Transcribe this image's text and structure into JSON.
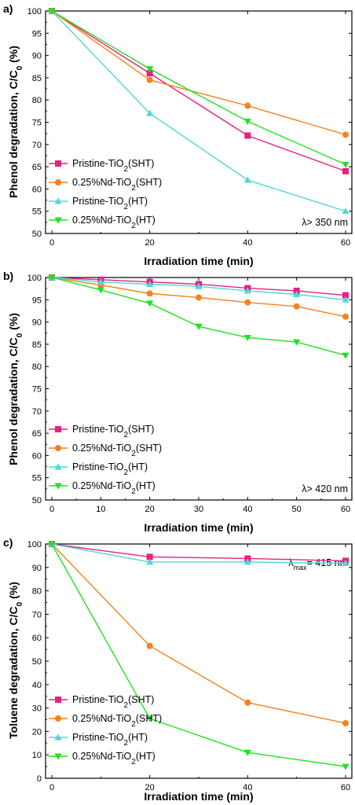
{
  "chart_data": [
    {
      "type": "line",
      "panel_label": "a)",
      "xlabel": "Irradiation time (min)",
      "ylabel": "Phenol degradation, C/C0 (%)",
      "xlim": [
        0,
        60
      ],
      "ylim": [
        50,
        100
      ],
      "xticks": [
        0,
        20,
        40,
        60
      ],
      "yticks": [
        50,
        55,
        60,
        65,
        70,
        75,
        80,
        85,
        90,
        95,
        100
      ],
      "annotation": "λ> 350 nm",
      "legend_position": "bottom-left",
      "grid": false,
      "series": [
        {
          "name": "Pristine-TiO2(SHT)",
          "name_parts": [
            "Pristine-TiO",
            "2",
            "(SHT)"
          ],
          "color": "#e8207f",
          "marker": "square",
          "x": [
            0,
            20,
            40,
            60
          ],
          "values": [
            100,
            86,
            72,
            64
          ]
        },
        {
          "name": "0.25%Nd-TiO2(SHT)",
          "name_parts": [
            "0.25%Nd-TiO",
            "2",
            "(SHT)"
          ],
          "color": "#f4821f",
          "marker": "circle",
          "x": [
            0,
            20,
            40,
            60
          ],
          "values": [
            100,
            84.5,
            78.7,
            72.2
          ]
        },
        {
          "name": "Pristine-TiO2(HT)",
          "name_parts": [
            "Pristine-TiO",
            "2",
            "(HT)"
          ],
          "color": "#4fd8d8",
          "marker": "triangle-up",
          "x": [
            0,
            20,
            40,
            60
          ],
          "values": [
            100,
            77,
            62,
            55
          ]
        },
        {
          "name": "0.25%Nd-TiO2(HT)",
          "name_parts": [
            "0.25%Nd-TiO",
            "2",
            "(HT)"
          ],
          "color": "#22e022",
          "marker": "triangle-down",
          "x": [
            0,
            20,
            40,
            60
          ],
          "values": [
            100,
            87,
            75.2,
            65.5
          ]
        }
      ]
    },
    {
      "type": "line",
      "panel_label": "b)",
      "xlabel": "Irradiation time (min)",
      "ylabel": "Phenol degradation, C/C0 (%)",
      "xlim": [
        0,
        60
      ],
      "ylim": [
        50,
        100
      ],
      "xticks": [
        0,
        10,
        20,
        30,
        40,
        50,
        60
      ],
      "yticks": [
        50,
        55,
        60,
        65,
        70,
        75,
        80,
        85,
        90,
        95,
        100
      ],
      "annotation": "λ> 420 nm",
      "legend_position": "bottom-left",
      "grid": false,
      "series": [
        {
          "name": "Pristine-TiO2(SHT)",
          "name_parts": [
            "Pristine-TiO",
            "2",
            "(SHT)"
          ],
          "color": "#e8207f",
          "marker": "square",
          "x": [
            0,
            10,
            20,
            30,
            40,
            50,
            60
          ],
          "values": [
            100,
            99.5,
            99,
            98.5,
            97.6,
            97,
            96
          ]
        },
        {
          "name": "0.25%Nd-TiO2(SHT)",
          "name_parts": [
            "0.25%Nd-TiO",
            "2",
            "(SHT)"
          ],
          "color": "#f4821f",
          "marker": "circle",
          "x": [
            0,
            10,
            20,
            30,
            40,
            50,
            60
          ],
          "values": [
            100,
            98.3,
            96.4,
            95.5,
            94.4,
            93.5,
            91.2
          ]
        },
        {
          "name": "Pristine-TiO2(HT)",
          "name_parts": [
            "Pristine-TiO",
            "2",
            "(HT)"
          ],
          "color": "#4fd8d8",
          "marker": "triangle-up",
          "x": [
            0,
            10,
            20,
            30,
            40,
            50,
            60
          ],
          "values": [
            100,
            99,
            98.5,
            98,
            97,
            96.2,
            95
          ]
        },
        {
          "name": "0.25%Nd-TiO2(HT)",
          "name_parts": [
            "0.25%Nd-TiO",
            "2",
            "(HT)"
          ],
          "color": "#22e022",
          "marker": "triangle-down",
          "x": [
            0,
            10,
            20,
            30,
            40,
            50,
            60
          ],
          "values": [
            100,
            97.2,
            94.2,
            89,
            86.5,
            85.5,
            82.5
          ]
        }
      ]
    },
    {
      "type": "line",
      "panel_label": "c)",
      "xlabel": "Irradiation time (min)",
      "ylabel": "Toluene degradation, C/C0 (%)",
      "xlim": [
        0,
        60
      ],
      "ylim": [
        0,
        100
      ],
      "xticks": [
        0,
        20,
        40,
        60
      ],
      "yticks": [
        0,
        10,
        20,
        30,
        40,
        50,
        60,
        70,
        80,
        90,
        100
      ],
      "annotation": "λmax= 415 nm",
      "legend_position": "bottom-left",
      "grid": false,
      "series": [
        {
          "name": "Pristine-TiO2(SHT)",
          "name_parts": [
            "Pristine-TiO",
            "2",
            "(SHT)"
          ],
          "color": "#e8207f",
          "marker": "square",
          "x": [
            0,
            20,
            40,
            60
          ],
          "values": [
            100,
            94.5,
            93.8,
            92.8
          ]
        },
        {
          "name": "0.25%Nd-TiO2(SHT)",
          "name_parts": [
            "0.25%Nd-TiO",
            "2",
            "(SHT)"
          ],
          "color": "#f4821f",
          "marker": "circle",
          "x": [
            0,
            20,
            40,
            60
          ],
          "values": [
            100,
            56.5,
            32.3,
            23.5
          ]
        },
        {
          "name": "Pristine-TiO2(HT)",
          "name_parts": [
            "Pristine-TiO",
            "2",
            "(HT)"
          ],
          "color": "#4fd8d8",
          "marker": "triangle-up",
          "x": [
            0,
            20,
            40,
            60
          ],
          "values": [
            100,
            92.3,
            92.3,
            91.8
          ]
        },
        {
          "name": "0.25%Nd-TiO2(HT)",
          "name_parts": [
            "0.25%Nd-TiO",
            "2",
            "(HT)"
          ],
          "color": "#22e022",
          "marker": "triangle-down",
          "x": [
            0,
            20,
            40,
            60
          ],
          "values": [
            100,
            25.5,
            11,
            5
          ]
        }
      ]
    }
  ]
}
